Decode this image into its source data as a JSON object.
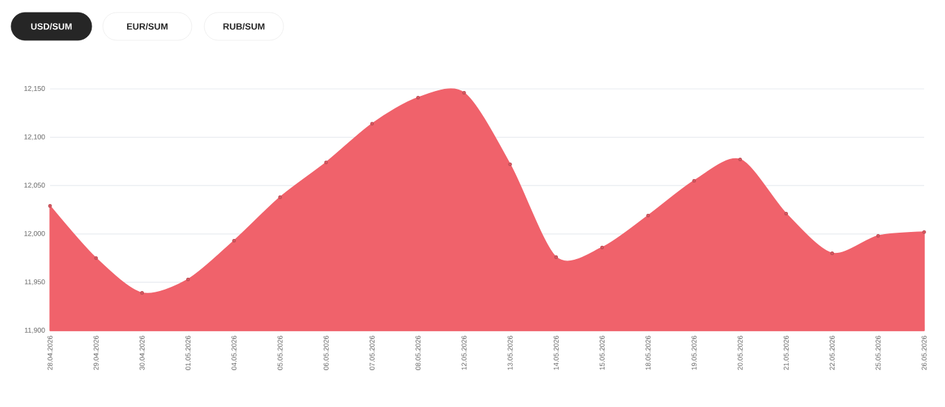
{
  "chart_data": {
    "type": "area",
    "categories": [
      "28.04.2026",
      "29.04.2026",
      "30.04.2026",
      "01.05.2026",
      "04.05.2026",
      "05.05.2026",
      "06.05.2026",
      "07.05.2026",
      "08.05.2026",
      "12.05.2026",
      "13.05.2026",
      "14.05.2026",
      "15.05.2026",
      "18.05.2026",
      "19.05.2026",
      "20.05.2026",
      "21.05.2026",
      "22.05.2026",
      "25.05.2026",
      "26.05.2026"
    ],
    "values": [
      12029,
      11975,
      11939,
      11953,
      11993,
      12038,
      12074,
      12114,
      12141,
      12146,
      12072,
      11976,
      11986,
      12019,
      12055,
      12077,
      12021,
      11980,
      11998,
      12002
    ],
    "color": "#f0626b",
    "ylim": [
      11900,
      12150
    ],
    "yticks": [
      {
        "value": 11900,
        "label": "11,900"
      },
      {
        "value": 11950,
        "label": "11,950"
      },
      {
        "value": 12000,
        "label": "12,000"
      },
      {
        "value": 12050,
        "label": "12,050"
      },
      {
        "value": 12100,
        "label": "12,100"
      },
      {
        "value": 12150,
        "label": "12,150"
      }
    ],
    "grid": "y",
    "marker": "circle",
    "annotations": [
      "USD/SUM",
      "EUR/SUM",
      "RUB/SUM"
    ]
  }
}
